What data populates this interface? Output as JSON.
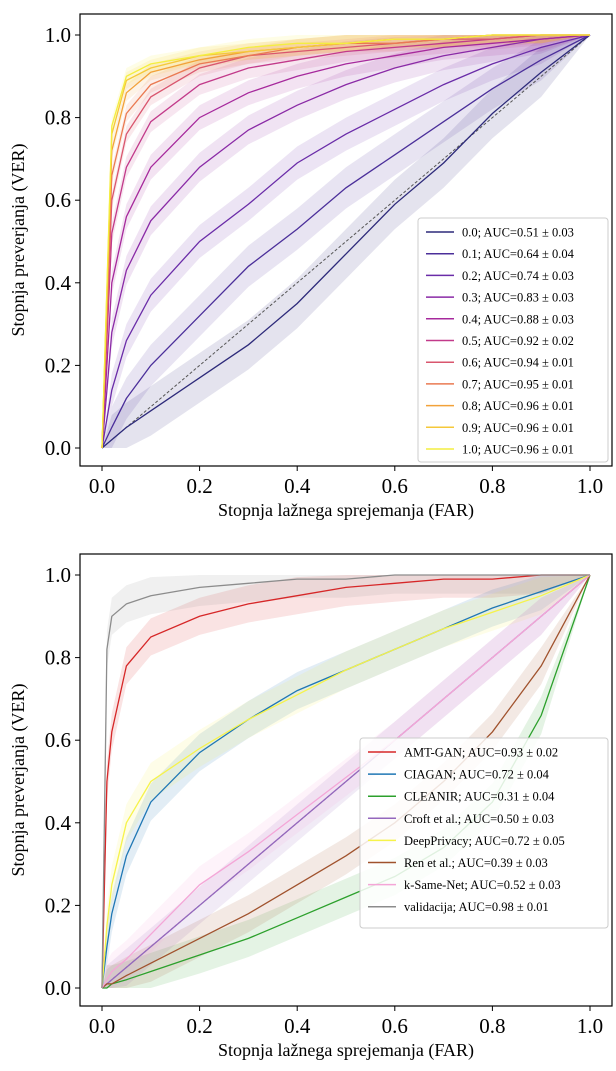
{
  "chart_data": [
    {
      "type": "line",
      "title": "",
      "xlabel": "Stopnja lažnega sprejemanja (FAR)",
      "ylabel": "Stopnja preverjanja (VER)",
      "xlim": [
        0,
        1
      ],
      "ylim": [
        0,
        1
      ],
      "xticks": [
        "0.0",
        "0.2",
        "0.4",
        "0.6",
        "0.8",
        "1.0"
      ],
      "yticks": [
        "0.0",
        "0.2",
        "0.4",
        "0.6",
        "0.8",
        "1.0"
      ],
      "legend_position": "lower-right",
      "x": [
        0,
        0.02,
        0.05,
        0.1,
        0.2,
        0.3,
        0.4,
        0.5,
        0.6,
        0.7,
        0.8,
        0.9,
        1.0
      ],
      "series": [
        {
          "name": "0.0; AUC=0.51 ± 0.03",
          "color": "#2d2a7a",
          "values": [
            0,
            0.02,
            0.05,
            0.09,
            0.17,
            0.25,
            0.35,
            0.47,
            0.59,
            0.69,
            0.81,
            0.91,
            1.0
          ]
        },
        {
          "name": "0.1; AUC=0.64 ± 0.04",
          "color": "#4b2f9a",
          "values": [
            0,
            0.05,
            0.12,
            0.2,
            0.32,
            0.44,
            0.53,
            0.63,
            0.71,
            0.79,
            0.87,
            0.94,
            1.0
          ]
        },
        {
          "name": "0.2; AUC=0.74 ± 0.03",
          "color": "#6a2ca8",
          "values": [
            0,
            0.14,
            0.26,
            0.37,
            0.5,
            0.59,
            0.69,
            0.76,
            0.82,
            0.88,
            0.93,
            0.97,
            1.0
          ]
        },
        {
          "name": "0.3; AUC=0.83 ± 0.03",
          "color": "#8a2aa6",
          "values": [
            0,
            0.28,
            0.43,
            0.55,
            0.68,
            0.77,
            0.83,
            0.88,
            0.92,
            0.95,
            0.97,
            0.99,
            1.0
          ]
        },
        {
          "name": "0.4; AUC=0.88 ± 0.03",
          "color": "#a6299c",
          "values": [
            0,
            0.4,
            0.56,
            0.68,
            0.8,
            0.86,
            0.9,
            0.93,
            0.95,
            0.97,
            0.98,
            0.99,
            1.0
          ]
        },
        {
          "name": "0.5; AUC=0.92 ± 0.02",
          "color": "#c23a8a",
          "values": [
            0,
            0.52,
            0.68,
            0.79,
            0.88,
            0.92,
            0.94,
            0.96,
            0.97,
            0.98,
            0.99,
            1.0,
            1.0
          ]
        },
        {
          "name": "0.6; AUC=0.94 ± 0.01",
          "color": "#d9566e",
          "values": [
            0,
            0.6,
            0.76,
            0.85,
            0.92,
            0.95,
            0.96,
            0.97,
            0.98,
            0.99,
            0.99,
            1.0,
            1.0
          ]
        },
        {
          "name": "0.7; AUC=0.95 ± 0.01",
          "color": "#ea7a52",
          "values": [
            0,
            0.66,
            0.81,
            0.88,
            0.93,
            0.95,
            0.97,
            0.98,
            0.98,
            0.99,
            1.0,
            1.0,
            1.0
          ]
        },
        {
          "name": "0.8; AUC=0.96 ± 0.01",
          "color": "#f2a23a",
          "values": [
            0,
            0.72,
            0.86,
            0.91,
            0.94,
            0.96,
            0.97,
            0.98,
            0.99,
            0.99,
            1.0,
            1.0,
            1.0
          ]
        },
        {
          "name": "0.9; AUC=0.96 ± 0.01",
          "color": "#f5c83a",
          "values": [
            0,
            0.76,
            0.89,
            0.92,
            0.95,
            0.96,
            0.97,
            0.98,
            0.99,
            0.99,
            1.0,
            1.0,
            1.0
          ]
        },
        {
          "name": "1.0; AUC=0.96 ± 0.01",
          "color": "#f4ee40",
          "values": [
            0,
            0.78,
            0.9,
            0.93,
            0.95,
            0.97,
            0.98,
            0.98,
            0.99,
            0.99,
            1.0,
            1.0,
            1.0
          ]
        }
      ]
    },
    {
      "type": "line",
      "title": "",
      "xlabel": "Stopnja lažnega sprejemanja (FAR)",
      "ylabel": "Stopnja preverjanja (VER)",
      "xlim": [
        0,
        1
      ],
      "ylim": [
        0,
        1
      ],
      "xticks": [
        "0.0",
        "0.2",
        "0.4",
        "0.6",
        "0.8",
        "1.0"
      ],
      "yticks": [
        "0.0",
        "0.2",
        "0.4",
        "0.6",
        "0.8",
        "1.0"
      ],
      "legend_position": "lower-right",
      "x": [
        0,
        0.01,
        0.02,
        0.05,
        0.1,
        0.2,
        0.3,
        0.4,
        0.5,
        0.6,
        0.7,
        0.8,
        0.9,
        1.0
      ],
      "series": [
        {
          "name": "AMT-GAN; AUC=0.93 ± 0.02",
          "color": "#d62728",
          "values": [
            0,
            0.5,
            0.62,
            0.78,
            0.85,
            0.9,
            0.93,
            0.95,
            0.97,
            0.98,
            0.99,
            0.99,
            1.0,
            1.0
          ]
        },
        {
          "name": "CIAGAN; AUC=0.72 ± 0.04",
          "color": "#1f77b4",
          "values": [
            0,
            0.1,
            0.18,
            0.32,
            0.45,
            0.57,
            0.65,
            0.72,
            0.77,
            0.82,
            0.87,
            0.92,
            0.96,
            1.0
          ]
        },
        {
          "name": "CLEANIR; AUC=0.31 ± 0.04",
          "color": "#2ca02c",
          "values": [
            0,
            0.0,
            0.01,
            0.02,
            0.04,
            0.08,
            0.12,
            0.17,
            0.22,
            0.27,
            0.34,
            0.45,
            0.66,
            1.0
          ]
        },
        {
          "name": "Croft et al.; AUC=0.50 ± 0.03",
          "color": "#9467bd",
          "values": [
            0,
            0.01,
            0.02,
            0.05,
            0.1,
            0.2,
            0.3,
            0.4,
            0.5,
            0.6,
            0.7,
            0.8,
            0.9,
            1.0
          ]
        },
        {
          "name": "DeepPrivacy; AUC=0.72 ± 0.05",
          "color": "#f6f34a",
          "values": [
            0,
            0.15,
            0.25,
            0.4,
            0.5,
            0.58,
            0.65,
            0.71,
            0.77,
            0.82,
            0.87,
            0.91,
            0.95,
            1.0
          ]
        },
        {
          "name": "Ren et al.; AUC=0.39 ± 0.03",
          "color": "#a0522d",
          "values": [
            0,
            0.01,
            0.01,
            0.03,
            0.06,
            0.12,
            0.18,
            0.25,
            0.32,
            0.4,
            0.5,
            0.62,
            0.78,
            1.0
          ]
        },
        {
          "name": "k-Same-Net; AUC=0.52 ± 0.03",
          "color": "#f4a6d7",
          "values": [
            0,
            0.02,
            0.04,
            0.07,
            0.13,
            0.25,
            0.33,
            0.42,
            0.51,
            0.6,
            0.7,
            0.8,
            0.9,
            1.0
          ]
        },
        {
          "name": "validacija; AUC=0.98 ± 0.01",
          "color": "#8c8c8c",
          "values": [
            0,
            0.82,
            0.9,
            0.93,
            0.95,
            0.97,
            0.98,
            0.99,
            0.99,
            1.0,
            1.0,
            1.0,
            1.0,
            1.0
          ]
        }
      ]
    }
  ]
}
